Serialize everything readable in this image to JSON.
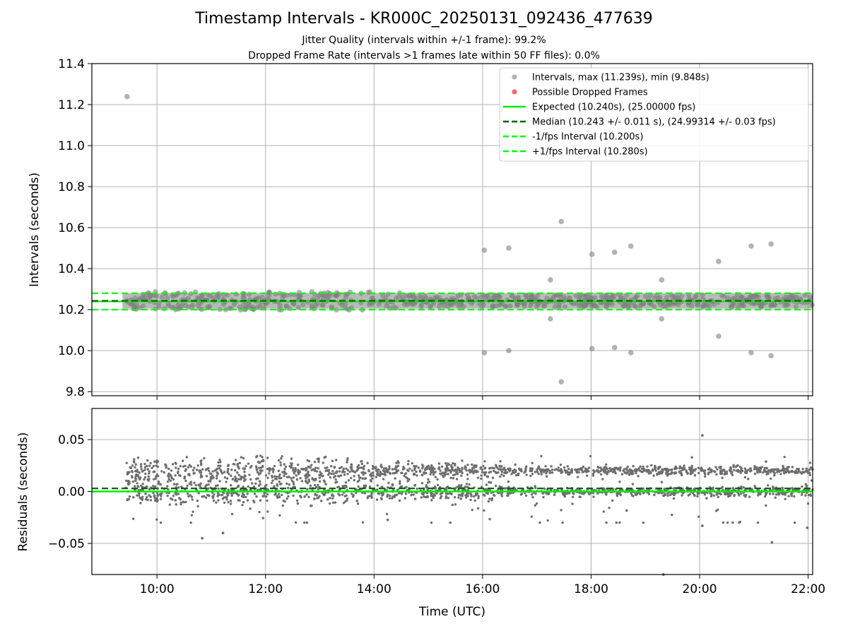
{
  "figure": {
    "title": "Timestamp Intervals - KR000C_20250131_092436_477639",
    "subtitle_1": "Jitter Quality (intervals within +/-1 frame): 99.2%",
    "subtitle_2": "Dropped Frame Rate (intervals >1 frames late within 50 FF files): 0.0%"
  },
  "colors": {
    "points": "#808080",
    "dropped": "#ff4d4d",
    "expected": "#00ee00",
    "median": "#006400",
    "bounds": "#00ff00",
    "grid": "#b0b0b0"
  },
  "chart_data": [
    {
      "type": "scatter",
      "xlabel": "",
      "ylabel": "Intervals (seconds)",
      "xlim": [
        "08:48",
        "22:05"
      ],
      "ylim": [
        9.78,
        11.4
      ],
      "x_ticks": [
        "10:00",
        "12:00",
        "14:00",
        "16:00",
        "18:00",
        "20:00",
        "22:00"
      ],
      "y_ticks": [
        "9.8",
        "10.0",
        "10.2",
        "10.4",
        "10.6",
        "10.8",
        "11.0",
        "11.2",
        "11.4"
      ],
      "grid": true,
      "legend_position": "top-right",
      "dense_band": {
        "x_start": "09:25",
        "x_end": "22:05",
        "y_min": 10.205,
        "y_max": 10.28
      },
      "outliers": [
        {
          "x": "09:27",
          "y": 11.239
        },
        {
          "x": "16:02",
          "y": 10.49
        },
        {
          "x": "16:02",
          "y": 9.99
        },
        {
          "x": "16:29",
          "y": 10.5
        },
        {
          "x": "16:29",
          "y": 10.0
        },
        {
          "x": "17:15",
          "y": 10.345
        },
        {
          "x": "17:15",
          "y": 10.155
        },
        {
          "x": "17:27",
          "y": 10.63
        },
        {
          "x": "17:27",
          "y": 9.848
        },
        {
          "x": "18:01",
          "y": 10.47
        },
        {
          "x": "18:01",
          "y": 10.01
        },
        {
          "x": "18:26",
          "y": 10.48
        },
        {
          "x": "18:26",
          "y": 10.015
        },
        {
          "x": "18:44",
          "y": 10.51
        },
        {
          "x": "18:44",
          "y": 9.99
        },
        {
          "x": "19:18",
          "y": 10.345
        },
        {
          "x": "19:18",
          "y": 10.155
        },
        {
          "x": "20:21",
          "y": 10.435
        },
        {
          "x": "20:21",
          "y": 10.07
        },
        {
          "x": "20:57",
          "y": 10.51
        },
        {
          "x": "20:57",
          "y": 9.99
        },
        {
          "x": "21:19",
          "y": 10.52
        },
        {
          "x": "21:19",
          "y": 9.975
        }
      ],
      "lines": {
        "expected": 10.24,
        "median": 10.243,
        "lower": 10.2,
        "upper": 10.28
      },
      "legend": [
        {
          "label": "Intervals, max (11.239s), min (9.848s)",
          "style": "dot-gray"
        },
        {
          "label": "Possible Dropped Frames",
          "style": "dot-red"
        },
        {
          "label": "Expected (10.240s), (25.00000 fps)",
          "style": "solid-green"
        },
        {
          "label": "Median (10.243 +/- 0.011 s), (24.99314 +/- 0.03 fps)",
          "style": "dash-darkgreen"
        },
        {
          "label": "-1/fps Interval (10.200s)",
          "style": "dash-green"
        },
        {
          "label": "+1/fps Interval (10.280s)",
          "style": "dash-green"
        }
      ]
    },
    {
      "type": "scatter",
      "xlabel": "Time (UTC)",
      "ylabel": "Residuals (seconds)",
      "xlim": [
        "08:48",
        "22:05"
      ],
      "ylim": [
        -0.08,
        0.08
      ],
      "x_ticks": [
        "10:00",
        "12:00",
        "14:00",
        "16:00",
        "18:00",
        "20:00",
        "22:00"
      ],
      "y_ticks": [
        "−0.05",
        "0.00",
        "0.05"
      ],
      "y_tick_values": [
        -0.05,
        0.0,
        0.05
      ],
      "grid": true,
      "bands": {
        "upper": 0.02,
        "lower": 0.0
      },
      "lines": {
        "expected": 0.0,
        "median": 0.003
      },
      "outliers": [
        {
          "x": "10:50",
          "y": -0.045
        },
        {
          "x": "11:13",
          "y": -0.04
        },
        {
          "x": "20:03",
          "y": 0.054
        },
        {
          "x": "20:03",
          "y": -0.033
        },
        {
          "x": "21:20",
          "y": -0.049
        },
        {
          "x": "21:59",
          "y": -0.035
        },
        {
          "x": "19:20",
          "y": -0.08
        }
      ]
    }
  ]
}
